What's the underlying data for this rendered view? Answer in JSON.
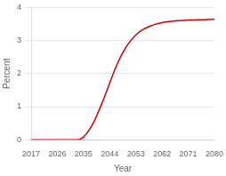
{
  "chart_data": {
    "type": "line",
    "xlabel": "Year",
    "ylabel": "Percent",
    "x": [
      2017,
      2018,
      2019,
      2020,
      2021,
      2022,
      2023,
      2024,
      2025,
      2026,
      2027,
      2028,
      2029,
      2030,
      2031,
      2032,
      2033,
      2034,
      2035,
      2036,
      2037,
      2038,
      2039,
      2040,
      2041,
      2042,
      2043,
      2044,
      2045,
      2046,
      2047,
      2048,
      2049,
      2050,
      2051,
      2052,
      2053,
      2054,
      2055,
      2056,
      2057,
      2058,
      2059,
      2060,
      2061,
      2062,
      2063,
      2064,
      2065,
      2066,
      2067,
      2068,
      2069,
      2070,
      2071,
      2072,
      2073,
      2074,
      2075,
      2076,
      2077,
      2078,
      2079,
      2080
    ],
    "values": [
      0.0,
      0.0,
      0.0,
      0.0,
      0.0,
      0.0,
      0.0,
      0.0,
      0.0,
      0.0,
      0.0,
      0.0,
      0.0,
      0.0,
      0.0,
      0.0,
      0.0,
      0.02,
      0.08,
      0.18,
      0.3,
      0.45,
      0.62,
      0.82,
      1.03,
      1.25,
      1.48,
      1.72,
      1.95,
      2.17,
      2.37,
      2.55,
      2.71,
      2.85,
      2.97,
      3.08,
      3.17,
      3.25,
      3.31,
      3.36,
      3.4,
      3.44,
      3.47,
      3.5,
      3.52,
      3.54,
      3.56,
      3.57,
      3.58,
      3.59,
      3.6,
      3.6,
      3.61,
      3.61,
      3.62,
      3.62,
      3.62,
      3.63,
      3.63,
      3.63,
      3.63,
      3.64,
      3.64,
      3.65
    ],
    "color": "#cc0000",
    "xlim": [
      2017,
      2080
    ],
    "xticks": [
      2017,
      2026,
      2035,
      2044,
      2053,
      2062,
      2071,
      2080
    ],
    "ylim": [
      0,
      4
    ],
    "yticks": [
      0,
      1,
      2,
      3,
      4
    ],
    "grid": "y"
  }
}
